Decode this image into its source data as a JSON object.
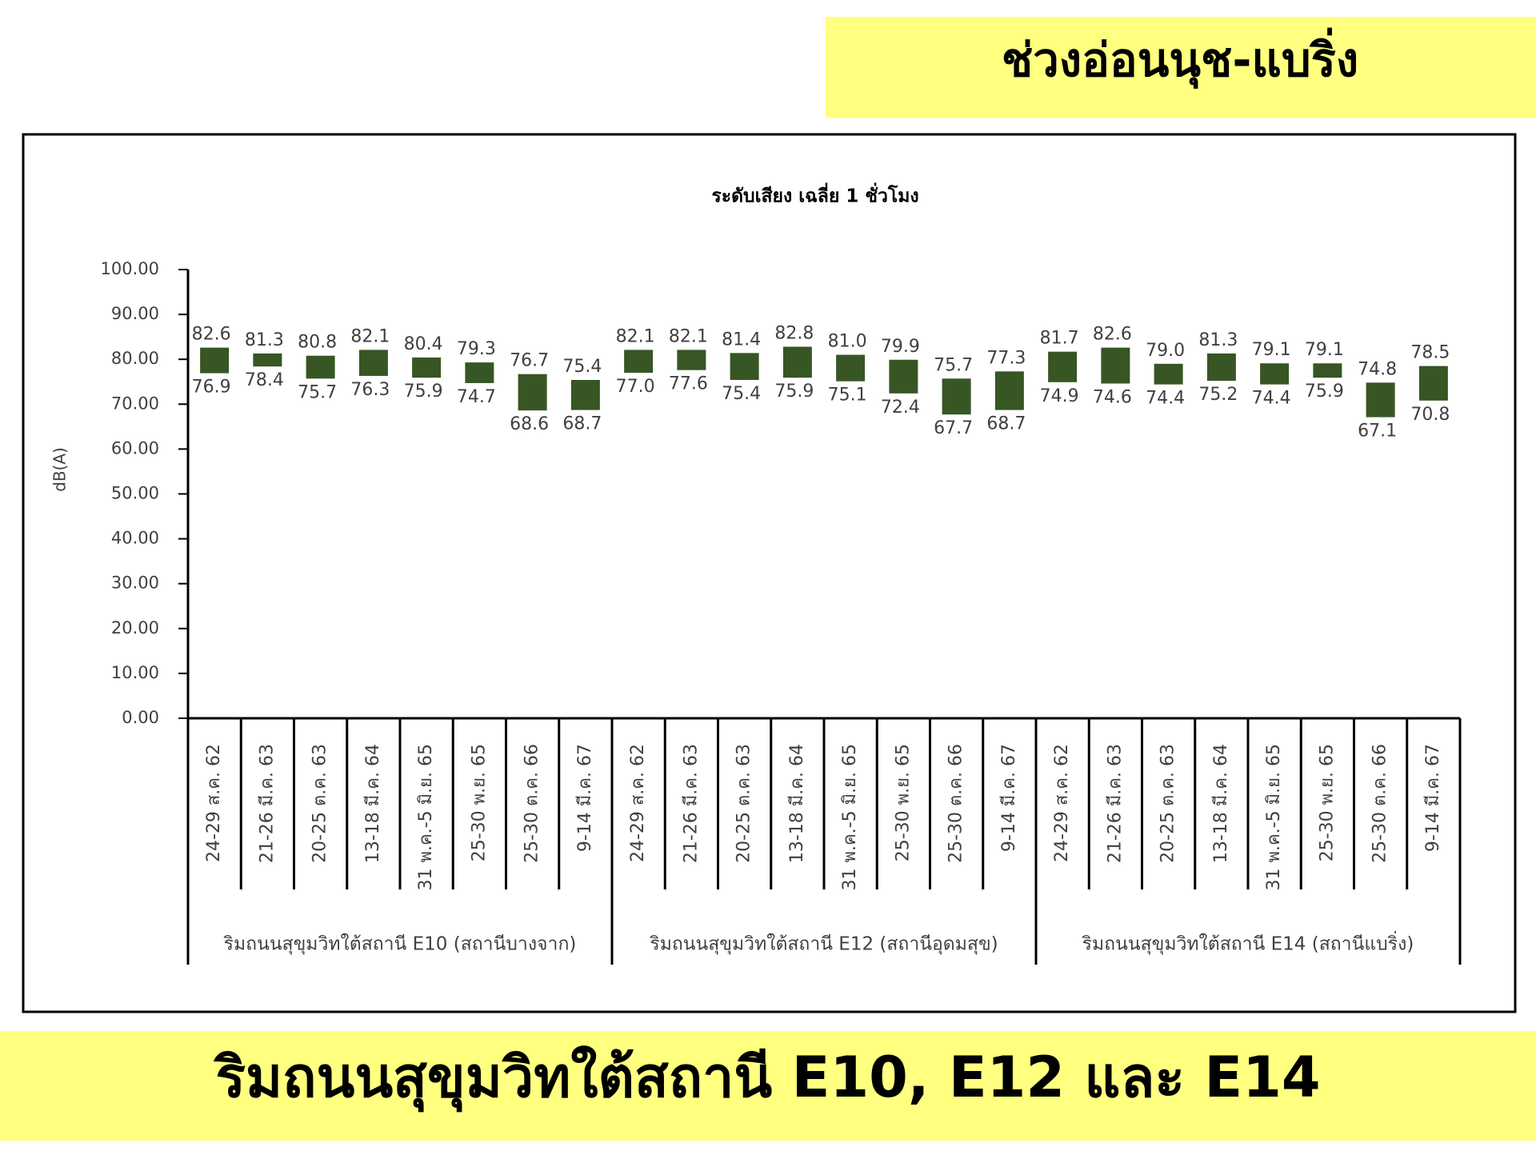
{
  "header": {
    "title": "ช่วงอ่อนนุช-แบริ่ง"
  },
  "footer": {
    "title": "ริมถนนสุขุมวิทใต้สถานี E10, E12 และ E14"
  },
  "chart_data": {
    "type": "range-bar",
    "title": "ระดับเสียง เฉลี่ย 1 ชั่วโมง",
    "y_label": "dB(A)",
    "categories": [
      "24-29 ส.ค. 62",
      "21-26 มี.ค. 63",
      "20-25 ต.ค. 63",
      "13-18 มี.ค. 64",
      "31 พ.ค.-5 มิ.ย. 65",
      "25-30 พ.ย. 65",
      "25-30 ต.ค. 66",
      "9-14 มี.ค. 67",
      "24-29 ส.ค. 62",
      "21-26 มี.ค. 63",
      "20-25 ต.ค. 63",
      "13-18 มี.ค. 64",
      "31 พ.ค.-5 มิ.ย. 65",
      "25-30 พ.ย. 65",
      "25-30 ต.ค. 66",
      "9-14 มี.ค. 67",
      "24-29 ส.ค. 62",
      "21-26 มี.ค. 63",
      "20-25 ต.ค. 63",
      "13-18 มี.ค. 64",
      "31 พ.ค.-5 มิ.ย. 65",
      "25-30 พ.ย. 65",
      "25-30 ต.ค. 66",
      "9-14 มี.ค. 67"
    ],
    "groups": [
      "ริมถนนสุขุมวิทใต้สถานี E10 (สถานีบางจาก)",
      "ริมถนนสุขุมวิทใต้สถานี E12 (สถานีอุดมสุข)",
      "ริมถนนสุขุมวิทใต้สถานี E14 (สถานีแบริ่ง)"
    ],
    "color": "#375623",
    "series": [
      {
        "values": [
          82.6,
          81.3,
          80.8,
          82.1,
          80.4,
          79.3,
          76.7,
          75.4,
          82.1,
          82.1,
          81.4,
          82.8,
          81.0,
          79.9,
          75.7,
          77.3,
          81.7,
          82.6,
          79.0,
          81.3,
          79.1,
          79.1,
          74.8,
          78.5
        ],
        "value_labels": [
          "82.6",
          "81.3",
          "80.8",
          "82.1",
          "80.4",
          "79.3",
          "76.7",
          "75.4",
          "82.1",
          "82.1",
          "81.4",
          "82.8",
          "81.0",
          "79.9",
          "75.7",
          "77.3",
          "81.7",
          "82.6",
          "79.0",
          "81.3",
          "79.1",
          "79.1",
          "74.8",
          "78.5"
        ]
      },
      {
        "values": [
          76.9,
          78.4,
          75.7,
          76.3,
          75.9,
          74.7,
          68.6,
          68.7,
          77.0,
          77.6,
          75.4,
          75.9,
          75.1,
          72.4,
          67.7,
          68.7,
          74.9,
          74.6,
          74.4,
          75.2,
          74.4,
          75.9,
          67.1,
          70.8
        ],
        "value_labels": [
          "76.9",
          "78.4",
          "75.7",
          "76.3",
          "75.9",
          "74.7",
          "68.6",
          "68.7",
          "77.0",
          "77.6",
          "75.4",
          "75.9",
          "75.1",
          "72.4",
          "67.7",
          "68.7",
          "74.9",
          "74.6",
          "74.4",
          "75.2",
          "74.4",
          "75.9",
          "67.1",
          "70.8"
        ]
      }
    ],
    "ylim": [
      0,
      100
    ],
    "yticks": [
      {
        "value": 0,
        "label": "0.00"
      },
      {
        "value": 10,
        "label": "10.00"
      },
      {
        "value": 20,
        "label": "20.00"
      },
      {
        "value": 30,
        "label": "30.00"
      },
      {
        "value": 40,
        "label": "40.00"
      },
      {
        "value": 50,
        "label": "50.00"
      },
      {
        "value": 60,
        "label": "60.00"
      },
      {
        "value": 70,
        "label": "70.00"
      },
      {
        "value": 80,
        "label": "80.00"
      },
      {
        "value": 90,
        "label": "90.00"
      },
      {
        "value": 100,
        "label": "100.00"
      }
    ]
  }
}
